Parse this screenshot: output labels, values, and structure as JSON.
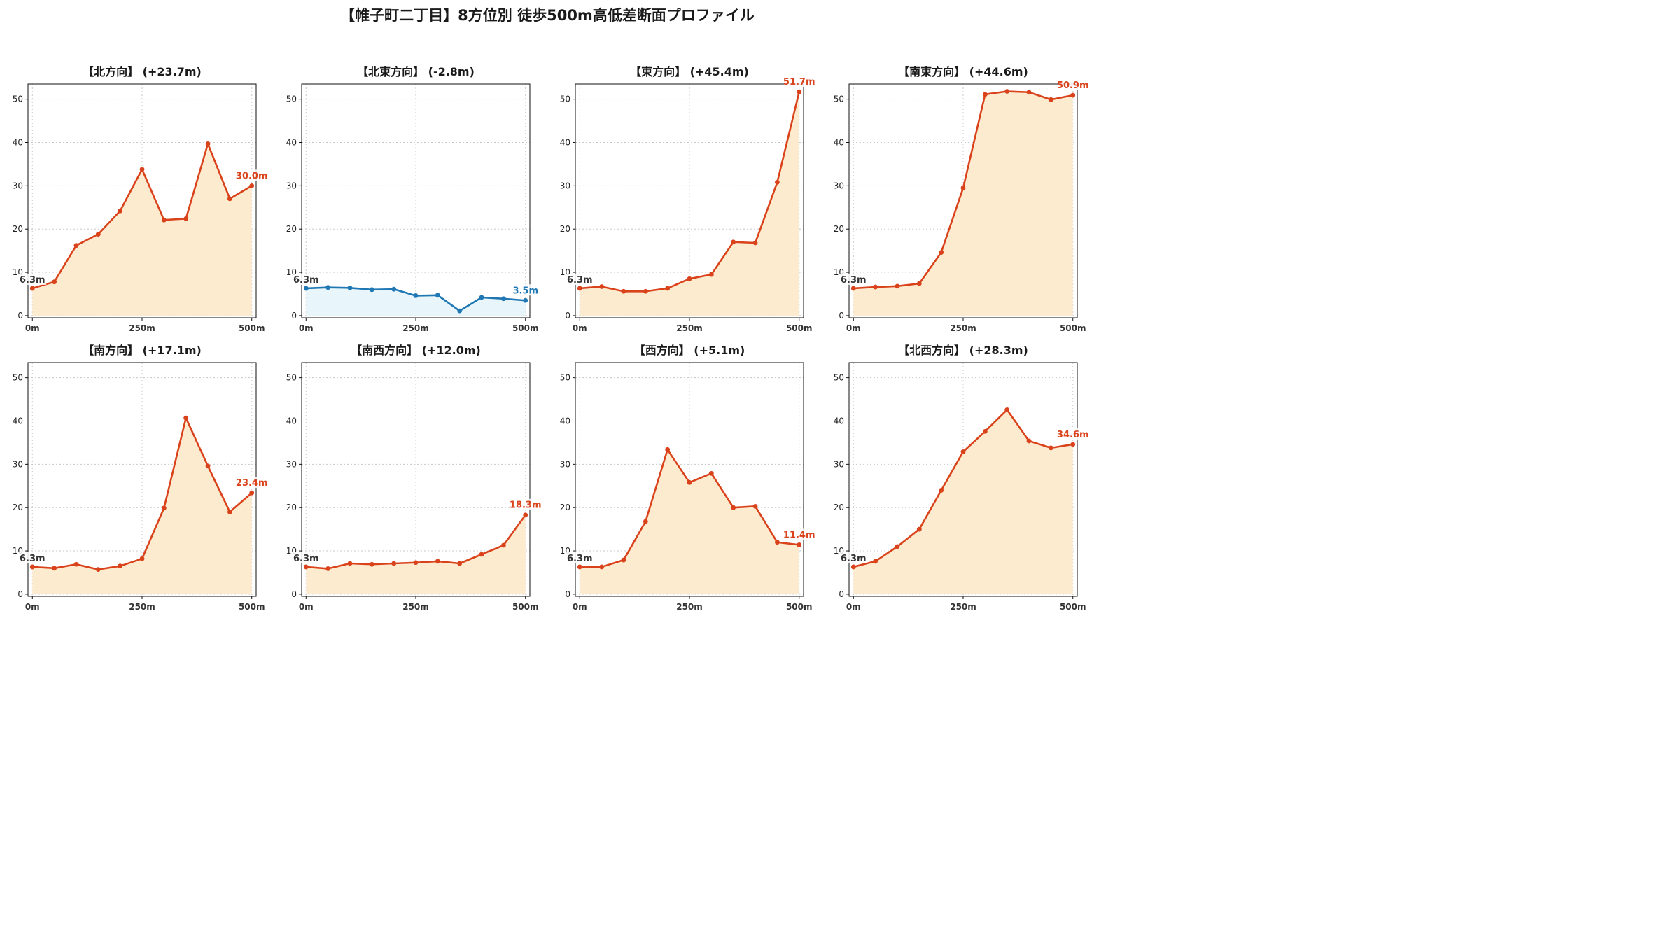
{
  "title": "【帷子町二丁目】8方位別 徒歩500m高低差断面プロファイル",
  "colors": {
    "rise_line": "#d9421a",
    "rise_fill": "#fdebd0",
    "fall_line": "#1f77b4",
    "fall_fill": "#e8f6fb",
    "grid": "#c8c8c8",
    "label_dark": "#333333"
  },
  "chart_data": [
    {
      "type": "area",
      "title": "【北方向】 (+23.7m)",
      "x": [
        0,
        50,
        100,
        150,
        200,
        250,
        300,
        350,
        400,
        450,
        500
      ],
      "y": [
        6.3,
        7.8,
        16.2,
        18.8,
        24.2,
        33.8,
        22.1,
        22.4,
        39.7,
        27.0,
        30.0
      ],
      "start_label": "6.3m",
      "end_label": "30.0m",
      "trend": "up",
      "xticks": [
        0,
        250,
        500
      ],
      "xtick_labels": [
        "0m",
        "250m",
        "500m"
      ],
      "yticks": [
        0,
        10,
        20,
        30,
        40,
        50
      ],
      "ylim": [
        -0.5,
        53.5
      ],
      "xlim": [
        -10,
        510
      ],
      "grid": true
    },
    {
      "type": "area",
      "title": "【北東方向】 (-2.8m)",
      "x": [
        0,
        50,
        100,
        150,
        200,
        250,
        300,
        350,
        400,
        450,
        500
      ],
      "y": [
        6.3,
        6.5,
        6.4,
        6.0,
        6.1,
        4.6,
        4.7,
        1.1,
        4.2,
        3.9,
        3.5
      ],
      "start_label": "6.3m",
      "end_label": "3.5m",
      "trend": "down",
      "xticks": [
        0,
        250,
        500
      ],
      "xtick_labels": [
        "0m",
        "250m",
        "500m"
      ],
      "yticks": [
        0,
        10,
        20,
        30,
        40,
        50
      ],
      "ylim": [
        -0.5,
        53.5
      ],
      "xlim": [
        -10,
        510
      ],
      "grid": true
    },
    {
      "type": "area",
      "title": "【東方向】 (+45.4m)",
      "x": [
        0,
        50,
        100,
        150,
        200,
        250,
        300,
        350,
        400,
        450,
        500
      ],
      "y": [
        6.3,
        6.7,
        5.6,
        5.6,
        6.3,
        8.5,
        9.5,
        17.0,
        16.8,
        30.8,
        51.7
      ],
      "start_label": "6.3m",
      "end_label": "51.7m",
      "trend": "up",
      "xticks": [
        0,
        250,
        500
      ],
      "xtick_labels": [
        "0m",
        "250m",
        "500m"
      ],
      "yticks": [
        0,
        10,
        20,
        30,
        40,
        50
      ],
      "ylim": [
        -0.5,
        53.5
      ],
      "xlim": [
        -10,
        510
      ],
      "grid": true
    },
    {
      "type": "area",
      "title": "【南東方向】 (+44.6m)",
      "x": [
        0,
        50,
        100,
        150,
        200,
        250,
        300,
        350,
        400,
        450,
        500
      ],
      "y": [
        6.3,
        6.6,
        6.8,
        7.4,
        14.6,
        29.5,
        51.1,
        51.8,
        51.6,
        49.9,
        50.9
      ],
      "start_label": "6.3m",
      "end_label": "50.9m",
      "trend": "up",
      "xticks": [
        0,
        250,
        500
      ],
      "xtick_labels": [
        "0m",
        "250m",
        "500m"
      ],
      "yticks": [
        0,
        10,
        20,
        30,
        40,
        50
      ],
      "ylim": [
        -0.5,
        53.5
      ],
      "xlim": [
        -10,
        510
      ],
      "grid": true
    },
    {
      "type": "area",
      "title": "【南方向】 (+17.1m)",
      "x": [
        0,
        50,
        100,
        150,
        200,
        250,
        300,
        350,
        400,
        450,
        500
      ],
      "y": [
        6.3,
        6.0,
        6.9,
        5.7,
        6.5,
        8.2,
        19.9,
        40.7,
        29.6,
        19.0,
        23.4
      ],
      "start_label": "6.3m",
      "end_label": "23.4m",
      "trend": "up",
      "xticks": [
        0,
        250,
        500
      ],
      "xtick_labels": [
        "0m",
        "250m",
        "500m"
      ],
      "yticks": [
        0,
        10,
        20,
        30,
        40,
        50
      ],
      "ylim": [
        -0.5,
        53.5
      ],
      "xlim": [
        -10,
        510
      ],
      "grid": true
    },
    {
      "type": "area",
      "title": "【南西方向】 (+12.0m)",
      "x": [
        0,
        50,
        100,
        150,
        200,
        250,
        300,
        350,
        400,
        450,
        500
      ],
      "y": [
        6.3,
        5.9,
        7.1,
        6.9,
        7.1,
        7.3,
        7.6,
        7.1,
        9.2,
        11.3,
        18.3
      ],
      "start_label": "6.3m",
      "end_label": "18.3m",
      "trend": "up",
      "xticks": [
        0,
        250,
        500
      ],
      "xtick_labels": [
        "0m",
        "250m",
        "500m"
      ],
      "yticks": [
        0,
        10,
        20,
        30,
        40,
        50
      ],
      "ylim": [
        -0.5,
        53.5
      ],
      "xlim": [
        -10,
        510
      ],
      "grid": true
    },
    {
      "type": "area",
      "title": "【西方向】 (+5.1m)",
      "x": [
        0,
        50,
        100,
        150,
        200,
        250,
        300,
        350,
        400,
        450,
        500
      ],
      "y": [
        6.3,
        6.3,
        7.9,
        16.8,
        33.4,
        25.8,
        27.9,
        20.0,
        20.3,
        12.0,
        11.4
      ],
      "start_label": "6.3m",
      "end_label": "11.4m",
      "trend": "up",
      "xticks": [
        0,
        250,
        500
      ],
      "xtick_labels": [
        "0m",
        "250m",
        "500m"
      ],
      "yticks": [
        0,
        10,
        20,
        30,
        40,
        50
      ],
      "ylim": [
        -0.5,
        53.5
      ],
      "xlim": [
        -10,
        510
      ],
      "grid": true
    },
    {
      "type": "area",
      "title": "【北西方向】 (+28.3m)",
      "x": [
        0,
        50,
        100,
        150,
        200,
        250,
        300,
        350,
        400,
        450,
        500
      ],
      "y": [
        6.3,
        7.6,
        11.0,
        15.0,
        24.0,
        32.9,
        37.6,
        42.6,
        35.4,
        33.8,
        34.6
      ],
      "start_label": "6.3m",
      "end_label": "34.6m",
      "trend": "up",
      "xticks": [
        0,
        250,
        500
      ],
      "xtick_labels": [
        "0m",
        "250m",
        "500m"
      ],
      "yticks": [
        0,
        10,
        20,
        30,
        40,
        50
      ],
      "ylim": [
        -0.5,
        53.5
      ],
      "xlim": [
        -10,
        510
      ],
      "grid": true
    }
  ]
}
